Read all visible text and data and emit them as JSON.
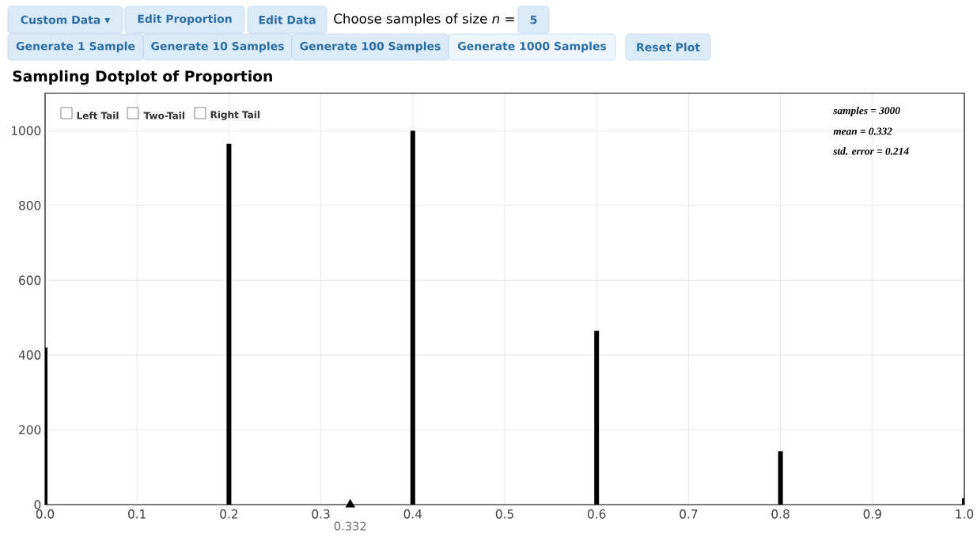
{
  "chart_data": {
    "type": "bar",
    "title": "Sampling Dotplot of Proportion",
    "x": [
      0.0,
      0.2,
      0.4,
      0.6,
      0.8,
      1.0
    ],
    "series": [
      {
        "color": "#000000",
        "values": [
          420,
          965,
          1000,
          465,
          143,
          17
        ]
      },
      {
        "type": "scatter",
        "color": "#000000",
        "marker": "triangle",
        "x": [
          0.332
        ],
        "values": [
          0
        ]
      }
    ],
    "xlim": [
      0,
      1
    ],
    "xticks": [
      {
        "value": 0,
        "label": "0.0"
      },
      0.1,
      0.2,
      0.3,
      0.4,
      0.5,
      0.6,
      0.7,
      0.8,
      0.9,
      {
        "value": 1,
        "label": "1.0"
      }
    ],
    "ylim": [
      0,
      1100
    ],
    "yticks": [
      0,
      200,
      400,
      600,
      800,
      1000
    ],
    "grid": true,
    "annotations": [
      "Custom Data ▾",
      "Edit Proportion",
      "Edit Data",
      "Choose samples of size *n* =",
      "5",
      "Generate 1 Sample",
      "Generate 10 Samples",
      "Generate 100 Samples",
      "Generate 1000 Samples",
      "Reset Plot",
      "Left Tail",
      "Two-Tail",
      "Right Tail",
      "samples = 3000",
      "mean = 0.332",
      "std. error = 0.214",
      {
        "text": "0.332",
        "x": 0.332,
        "y": 0
      }
    ]
  }
}
